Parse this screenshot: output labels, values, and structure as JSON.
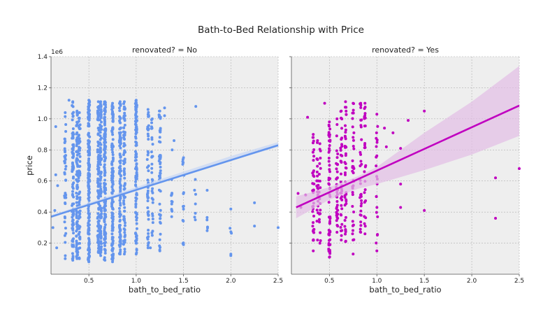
{
  "figure": {
    "title": "Bath-to-Bed Relationship with Price"
  },
  "colors": {
    "background": "#ffffff",
    "panel_bg": "#eeeeee",
    "grid": "#b0b0b0",
    "text": "#222222",
    "no_series": "#6495ed",
    "yes_series": "#c000c0",
    "yes_band": "#e2bde6",
    "no_band": "#c8d7f4"
  },
  "chart_data": [
    {
      "type": "scatter",
      "panel": "no",
      "title": "renovated? = No",
      "xlabel": "bath_to_bed_ratio",
      "ylabel": "price",
      "y_scale_label": "1e6",
      "xlim": [
        0.1,
        2.5
      ],
      "ylim": [
        0.0,
        1.4
      ],
      "x_ticks": [
        0.5,
        1.0,
        1.5,
        2.0,
        2.5
      ],
      "x_tick_labels": [
        "0.5",
        "1.0",
        "1.5",
        "2.0",
        "2.5"
      ],
      "y_ticks": [
        0.2,
        0.4,
        0.6,
        0.8,
        1.0,
        1.2,
        1.4
      ],
      "y_tick_labels": [
        "0.2",
        "0.4",
        "0.6",
        "0.8",
        "1.0",
        "1.2",
        "1.4"
      ],
      "grid": true,
      "series": [
        {
          "kind": "scatter",
          "color": "#6495ed",
          "clusters": [
            {
              "x": 0.25,
              "y_range": [
                0.1,
                1.04
              ],
              "n": 40
            },
            {
              "x": 0.33,
              "y_range": [
                0.09,
                1.11
              ],
              "n": 90
            },
            {
              "x": 0.375,
              "y_range": [
                0.1,
                1.05
              ],
              "n": 80
            },
            {
              "x": 0.4,
              "y_range": [
                0.1,
                1.04
              ],
              "n": 70
            },
            {
              "x": 0.5,
              "y_range": [
                0.08,
                1.12
              ],
              "n": 180
            },
            {
              "x": 0.6,
              "y_range": [
                0.14,
                1.11
              ],
              "n": 110
            },
            {
              "x": 0.625,
              "y_range": [
                0.12,
                1.11
              ],
              "n": 110
            },
            {
              "x": 0.67,
              "y_range": [
                0.09,
                1.11
              ],
              "n": 150
            },
            {
              "x": 0.75,
              "y_range": [
                0.08,
                1.1
              ],
              "n": 140
            },
            {
              "x": 0.83,
              "y_range": [
                0.13,
                1.11
              ],
              "n": 110
            },
            {
              "x": 0.875,
              "y_range": [
                0.13,
                1.11
              ],
              "n": 80
            },
            {
              "x": 1.0,
              "y_range": [
                0.13,
                1.12
              ],
              "n": 110
            },
            {
              "x": 1.125,
              "y_range": [
                0.17,
                1.06
              ],
              "n": 50
            },
            {
              "x": 1.17,
              "y_range": [
                0.25,
                1.0
              ],
              "n": 30
            },
            {
              "x": 1.25,
              "y_range": [
                0.15,
                1.05
              ],
              "n": 50
            },
            {
              "x": 1.375,
              "y_range": [
                0.37,
                0.61
              ],
              "n": 10
            },
            {
              "x": 1.5,
              "y_range": [
                0.19,
                0.75
              ],
              "n": 14
            },
            {
              "x": 1.625,
              "y_range": [
                0.35,
                0.61
              ],
              "n": 5
            },
            {
              "x": 1.75,
              "y_range": [
                0.28,
                0.54
              ],
              "n": 4
            },
            {
              "x": 2.0,
              "y_range": [
                0.12,
                0.42
              ],
              "n": 4
            }
          ],
          "outliers": [
            {
              "x": 0.15,
              "y": 0.95
            },
            {
              "x": 0.16,
              "y": 0.17
            },
            {
              "x": 0.15,
              "y": 0.64
            },
            {
              "x": 0.14,
              "y": 0.41
            },
            {
              "x": 0.17,
              "y": 0.57
            },
            {
              "x": 0.12,
              "y": 0.3
            },
            {
              "x": 0.29,
              "y": 1.12
            },
            {
              "x": 1.3,
              "y": 1.07
            },
            {
              "x": 1.3,
              "y": 1.02
            },
            {
              "x": 1.4,
              "y": 0.86
            },
            {
              "x": 1.63,
              "y": 1.08
            },
            {
              "x": 1.38,
              "y": 0.8
            },
            {
              "x": 2.25,
              "y": 0.46
            },
            {
              "x": 2.25,
              "y": 0.31
            },
            {
              "x": 2.5,
              "y": 0.3
            },
            {
              "x": 1.15,
              "y": 0.17
            }
          ]
        },
        {
          "kind": "regression",
          "color": "#6495ed",
          "line": {
            "x": [
              0.1,
              2.5
            ],
            "y": [
              0.37,
              0.83
            ]
          },
          "band": {
            "x": [
              0.1,
              0.5,
              1.0,
              1.5,
              2.0,
              2.5
            ],
            "lower": [
              0.36,
              0.45,
              0.54,
              0.64,
              0.73,
              0.82
            ],
            "upper": [
              0.38,
              0.46,
              0.56,
              0.66,
              0.76,
              0.85
            ]
          }
        }
      ]
    },
    {
      "type": "scatter",
      "panel": "yes",
      "title": "renovated? = Yes",
      "xlabel": "bath_to_bed_ratio",
      "xlim": [
        0.1,
        2.5
      ],
      "ylim": [
        0.0,
        1.4
      ],
      "x_ticks": [
        0.5,
        1.0,
        1.5,
        2.0,
        2.5
      ],
      "x_tick_labels": [
        "0.5",
        "1.0",
        "1.5",
        "2.0",
        "2.5"
      ],
      "y_ticks": [
        0.2,
        0.4,
        0.6,
        0.8,
        1.0,
        1.2,
        1.4
      ],
      "grid": true,
      "series": [
        {
          "kind": "scatter",
          "color": "#c000c0",
          "clusters": [
            {
              "x": 0.33,
              "y_range": [
                0.15,
                0.9
              ],
              "n": 35
            },
            {
              "x": 0.375,
              "y_range": [
                0.22,
                0.86
              ],
              "n": 20
            },
            {
              "x": 0.4,
              "y_range": [
                0.2,
                0.84
              ],
              "n": 20
            },
            {
              "x": 0.5,
              "y_range": [
                0.11,
                0.98
              ],
              "n": 60
            },
            {
              "x": 0.58,
              "y_range": [
                0.27,
                1.0
              ],
              "n": 35
            },
            {
              "x": 0.625,
              "y_range": [
                0.22,
                1.05
              ],
              "n": 35
            },
            {
              "x": 0.67,
              "y_range": [
                0.21,
                1.11
              ],
              "n": 40
            },
            {
              "x": 0.75,
              "y_range": [
                0.13,
                1.1
              ],
              "n": 35
            },
            {
              "x": 0.83,
              "y_range": [
                0.27,
                1.1
              ],
              "n": 30
            },
            {
              "x": 0.875,
              "y_range": [
                0.26,
                1.1
              ],
              "n": 25
            },
            {
              "x": 1.0,
              "y_range": [
                0.15,
                1.03
              ],
              "n": 20
            }
          ],
          "outliers": [
            {
              "x": 0.17,
              "y": 0.52
            },
            {
              "x": 0.2,
              "y": 0.43
            },
            {
              "x": 0.25,
              "y": 0.51
            },
            {
              "x": 0.27,
              "y": 1.01
            },
            {
              "x": 0.45,
              "y": 1.1
            },
            {
              "x": 1.08,
              "y": 0.94
            },
            {
              "x": 1.1,
              "y": 0.82
            },
            {
              "x": 1.17,
              "y": 0.91
            },
            {
              "x": 1.25,
              "y": 0.81
            },
            {
              "x": 1.25,
              "y": 0.58
            },
            {
              "x": 1.25,
              "y": 0.43
            },
            {
              "x": 1.33,
              "y": 0.99
            },
            {
              "x": 1.5,
              "y": 1.05
            },
            {
              "x": 1.5,
              "y": 0.41
            },
            {
              "x": 2.25,
              "y": 0.62
            },
            {
              "x": 2.25,
              "y": 0.36
            },
            {
              "x": 2.5,
              "y": 0.68
            }
          ]
        },
        {
          "kind": "regression",
          "color": "#c000c0",
          "line": {
            "x": [
              0.15,
              2.5
            ],
            "y": [
              0.43,
              1.085
            ]
          },
          "band": {
            "x": [
              0.15,
              0.5,
              0.8,
              1.0,
              1.5,
              2.0,
              2.5
            ],
            "lower": [
              0.36,
              0.48,
              0.55,
              0.58,
              0.67,
              0.77,
              0.89
            ],
            "upper": [
              0.5,
              0.56,
              0.63,
              0.69,
              0.91,
              1.11,
              1.34
            ]
          }
        }
      ]
    }
  ]
}
